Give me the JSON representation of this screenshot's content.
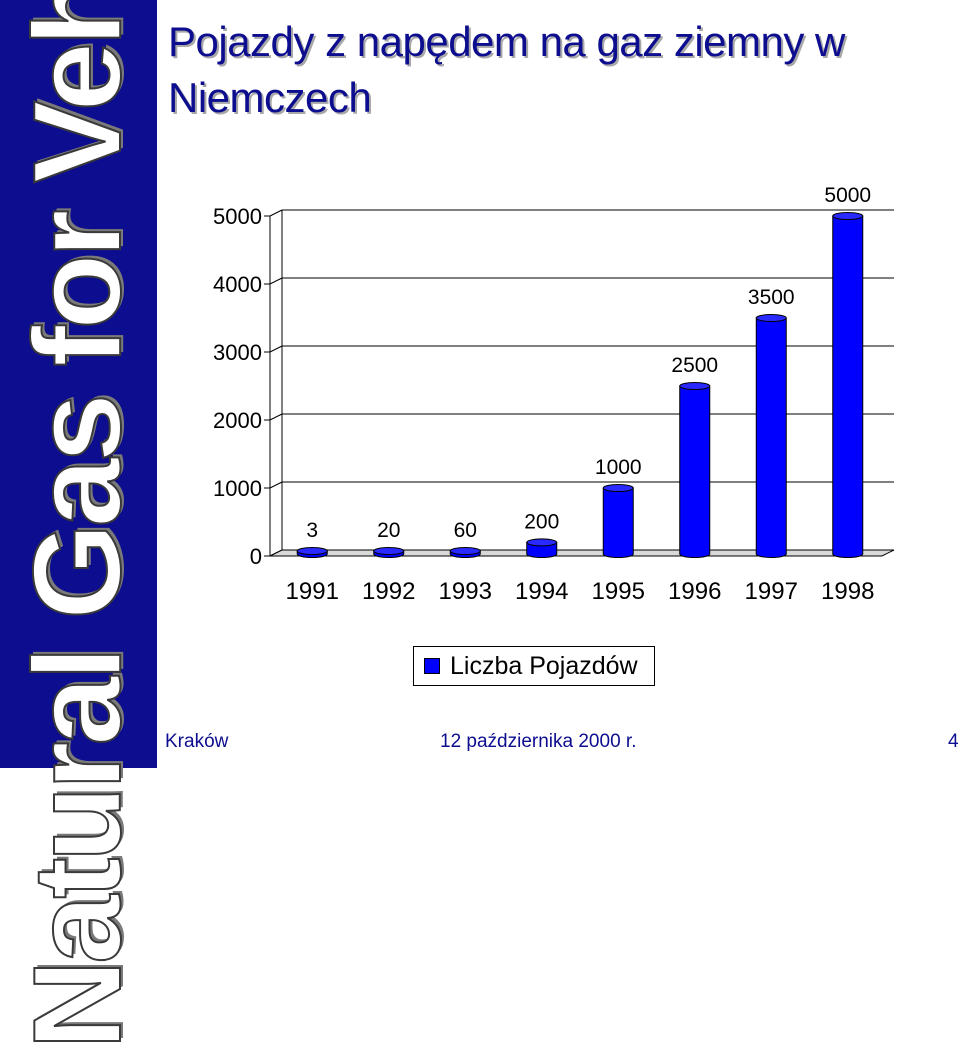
{
  "sidebar": {
    "text": "Natural Gas for Vehicles",
    "color": "#0d0d8f"
  },
  "slide": {
    "title": "Pojazdy z napędem na gaz ziemny w Niemczech",
    "footer_left": "Kraków",
    "footer_center": "12 października 2000 r.",
    "page_number": "4"
  },
  "chart_data": {
    "type": "bar",
    "title": "Pojazdy z napędem na gaz ziemny w Niemczech",
    "categories": [
      "1991",
      "1992",
      "1993",
      "1994",
      "1995",
      "1996",
      "1997",
      "1998"
    ],
    "series": [
      {
        "name": "Liczba Pojazdów",
        "values": [
          3,
          20,
          60,
          200,
          1000,
          2500,
          3500,
          5000
        ],
        "color": "#0000ff"
      }
    ],
    "data_labels": [
      "3",
      "20",
      "60",
      "200",
      "1000",
      "2500",
      "3500",
      "5000"
    ],
    "y_ticks": [
      "0",
      "1000",
      "2000",
      "3000",
      "4000",
      "5000"
    ],
    "ylim": [
      0,
      5000
    ],
    "grid": true,
    "legend": "bottom",
    "xlabel": "",
    "ylabel": ""
  }
}
